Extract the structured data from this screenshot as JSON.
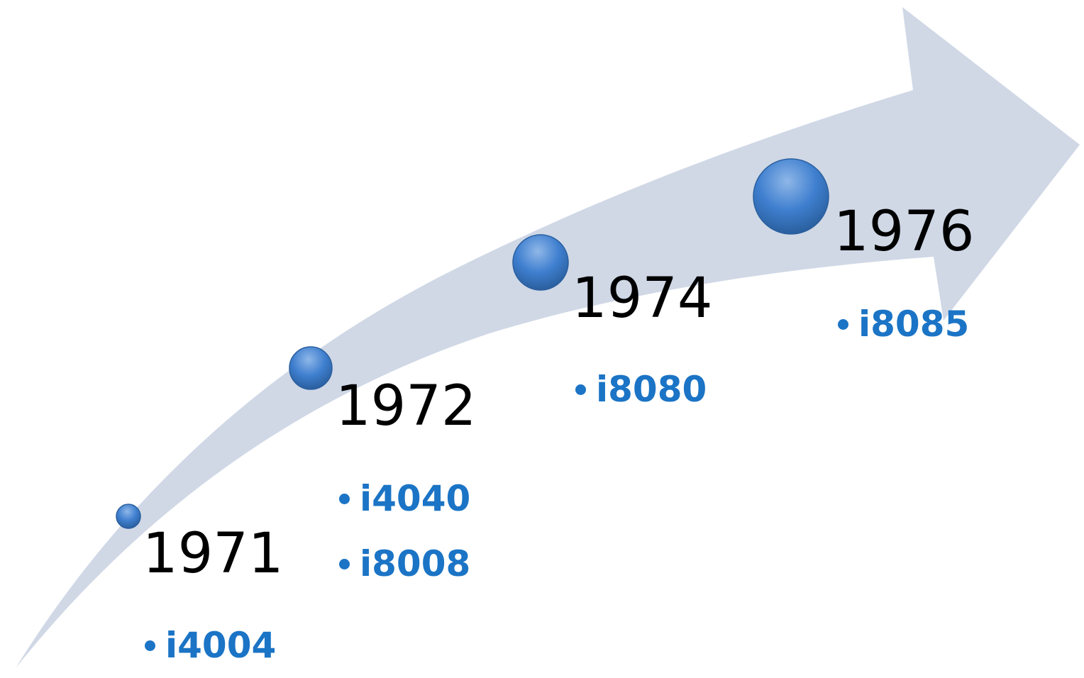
{
  "colors": {
    "arrow": "#d0d8e6",
    "dot_light": "#8fb7e8",
    "dot_mid": "#3f7fcf",
    "dot_dark": "#2a5f9e",
    "item_text": "#1b74c5",
    "year_text": "#000000"
  },
  "milestones": [
    {
      "year": "1971",
      "items": [
        "i4004"
      ]
    },
    {
      "year": "1972",
      "items": [
        "i4040",
        "i8008"
      ]
    },
    {
      "year": "1974",
      "items": [
        "i8080"
      ]
    },
    {
      "year": "1976",
      "items": [
        "i8085"
      ]
    }
  ]
}
